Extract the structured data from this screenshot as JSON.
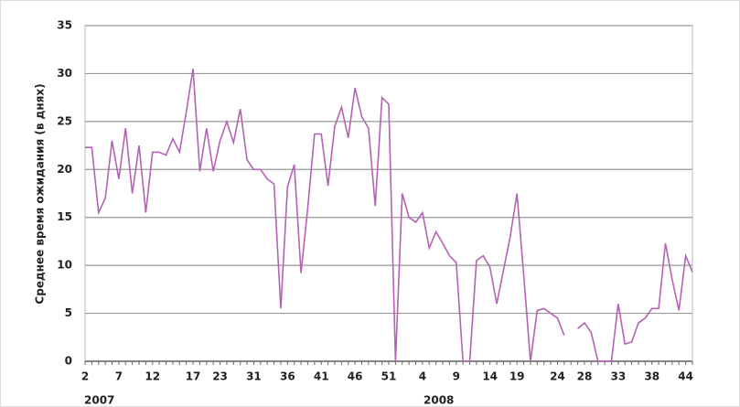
{
  "chart_data": {
    "type": "line",
    "y_label": "Среднее время ожидания (в днях)",
    "annotations": [
      "2007",
      "2008"
    ],
    "categories": [
      "2",
      null,
      null,
      null,
      null,
      "7",
      null,
      null,
      null,
      null,
      "12",
      null,
      null,
      null,
      null,
      null,
      "17",
      null,
      null,
      null,
      "23",
      null,
      null,
      null,
      null,
      "31",
      null,
      null,
      null,
      null,
      "36",
      null,
      null,
      null,
      null,
      "41",
      null,
      null,
      null,
      null,
      "46",
      null,
      null,
      null,
      null,
      "51",
      null,
      null,
      null,
      null,
      "4",
      null,
      null,
      null,
      null,
      "9",
      null,
      null,
      null,
      null,
      "14",
      null,
      null,
      null,
      "19",
      null,
      null,
      null,
      null,
      null,
      "24",
      null,
      null,
      null,
      "28",
      null,
      null,
      null,
      null,
      "33",
      null,
      null,
      null,
      null,
      "38",
      null,
      null,
      null,
      null,
      "44",
      null
    ],
    "series": [
      {
        "name": "Среднее время ожидания",
        "color": "#b463b4",
        "values": [
          22.3,
          22.3,
          15.5,
          17,
          23,
          19,
          24.3,
          17.5,
          22.5,
          15.5,
          21.8,
          21.8,
          21.5,
          23.2,
          21.8,
          26,
          30.5,
          19.8,
          24.3,
          19.8,
          23,
          25,
          22.8,
          26.3,
          21,
          20,
          20,
          19,
          18.5,
          5.5,
          18.2,
          20.5,
          9.2,
          16,
          23.7,
          23.7,
          18.3,
          24.5,
          26.5,
          23.3,
          28.5,
          25.5,
          24.3,
          16.2,
          27.5,
          26.8,
          0,
          17.5,
          15,
          14.5,
          15.5,
          11.8,
          13.5,
          12.3,
          11,
          10.3,
          0,
          0,
          10.5,
          11,
          9.8,
          6,
          9.5,
          13,
          17.5,
          9,
          0,
          5.3,
          5.5,
          5,
          4.5,
          2.7,
          null,
          3.4,
          4,
          3,
          0,
          0,
          0,
          6,
          1.8,
          2,
          4,
          4.5,
          5.5,
          5.5,
          12.3,
          8.5,
          5.3,
          11,
          9.3
        ]
      }
    ],
    "ylim": [
      0,
      35
    ],
    "yticks": [
      0,
      5,
      10,
      15,
      20,
      25,
      30,
      35
    ],
    "grid": true
  }
}
